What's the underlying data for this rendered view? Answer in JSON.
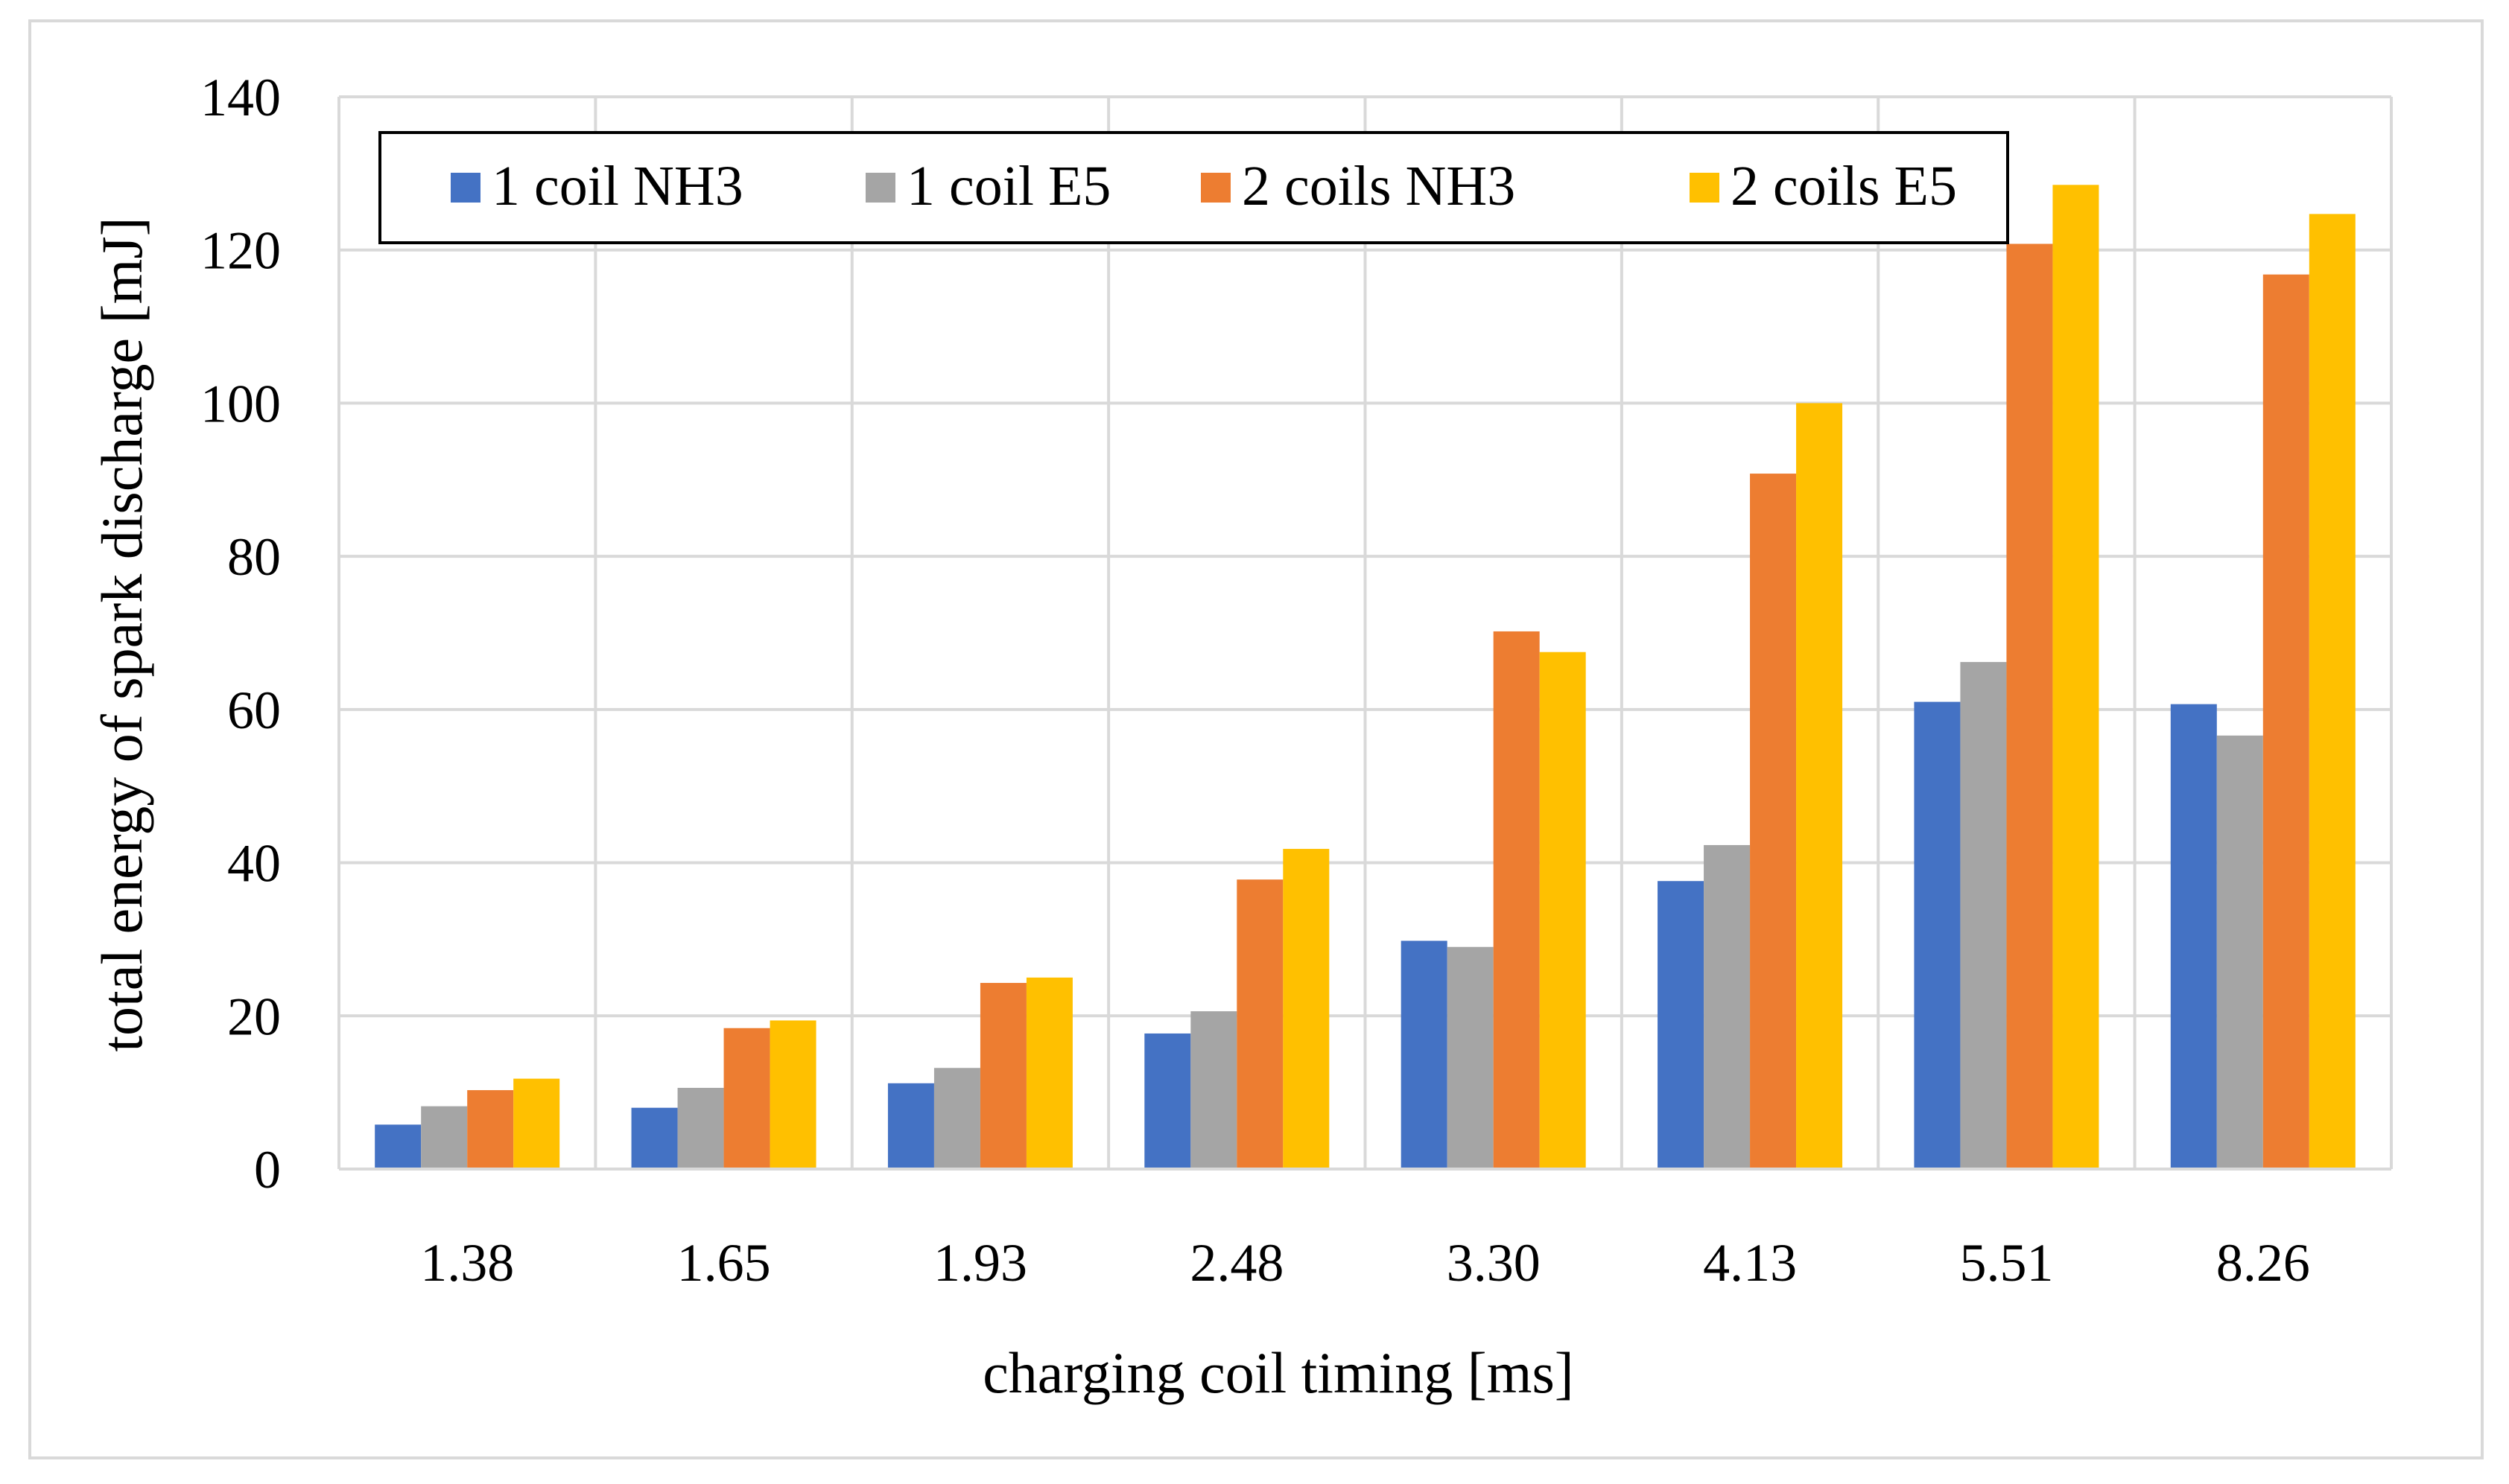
{
  "chart_data": {
    "type": "bar",
    "title": "",
    "xlabel": "charging coil timing [ms]",
    "ylabel": "total energy of spark discharge [mJ]",
    "ylim": [
      0,
      140
    ],
    "yticks": [
      0,
      20,
      40,
      60,
      80,
      100,
      120,
      140
    ],
    "grid": true,
    "legend_position": "top-left",
    "categories": [
      "1.38",
      "1.65",
      "1.93",
      "2.48",
      "3.30",
      "4.13",
      "5.51",
      "8.26"
    ],
    "series": [
      {
        "name": "1 coil NH3",
        "color": "#4472c4",
        "values": [
          5.8,
          8.0,
          11.2,
          17.7,
          29.8,
          37.6,
          61.0,
          60.7
        ]
      },
      {
        "name": "1 coil E5",
        "color": "#a5a5a5",
        "values": [
          8.2,
          10.6,
          13.2,
          20.6,
          29.0,
          42.3,
          66.2,
          56.6
        ]
      },
      {
        "name": "2 coils NH3",
        "color": "#ed7d31",
        "values": [
          10.3,
          18.4,
          24.3,
          37.8,
          70.2,
          90.8,
          120.8,
          116.8
        ]
      },
      {
        "name": "2 coils E5",
        "color": "#ffc000",
        "values": [
          11.8,
          19.4,
          25.0,
          41.8,
          67.5,
          100.0,
          128.5,
          124.7
        ]
      }
    ]
  }
}
